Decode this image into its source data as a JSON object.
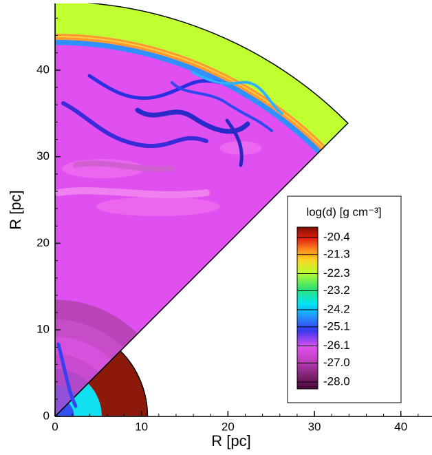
{
  "chart_data": {
    "type": "density-map",
    "x_label": "R [pc]",
    "y_label": "R [pc]",
    "xlim": [
      0,
      43.6
    ],
    "ylim": [
      0,
      47.7
    ],
    "xticks": [
      0,
      10,
      20,
      30,
      40
    ],
    "yticks": [
      0,
      10,
      20,
      30,
      40
    ],
    "colorbar": {
      "title": "log(d) [g cm⁻³]",
      "lim": [
        -28.36,
        -19.86
      ],
      "ticks": [
        -20.4,
        -21.3,
        -22.3,
        -23.2,
        -24.2,
        -25.1,
        -26.1,
        {
          "value": -27,
          "label": "-27.0"
        },
        {
          "value": -28,
          "label": "-28.0"
        }
      ]
    }
  }
}
